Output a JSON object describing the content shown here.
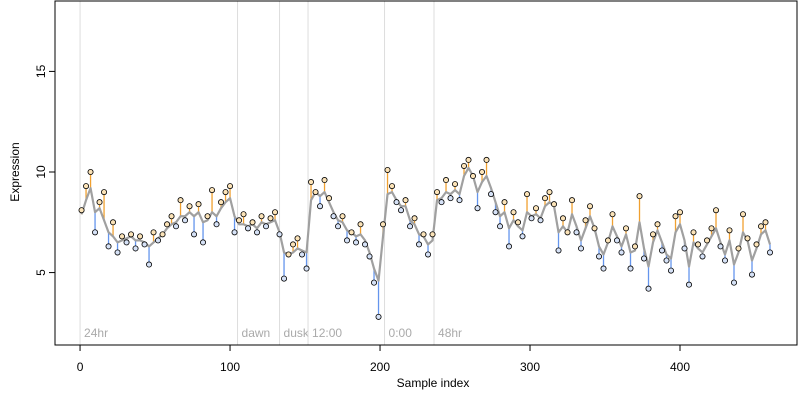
{
  "chart_data": {
    "type": "scatter",
    "xlabel": "Sample index",
    "ylabel": "Expression",
    "xlim": [
      -16.7,
      478
    ],
    "ylim": [
      1.4,
      18.5
    ],
    "xticks": [
      0,
      100,
      200,
      300,
      400
    ],
    "yticks": [
      5,
      10,
      15
    ],
    "above_color": "#f0a030",
    "below_color": "#6495ed",
    "annotations": [
      {
        "x": 0,
        "label": "24hr"
      },
      {
        "x": 105,
        "label": "dawn"
      },
      {
        "x": 133,
        "label": "dusk"
      },
      {
        "x": 152,
        "label": "12:00"
      },
      {
        "x": 203,
        "label": "0:00"
      },
      {
        "x": 236,
        "label": "48hr"
      }
    ],
    "x": [
      1,
      4,
      7,
      10,
      13,
      16,
      19,
      22,
      25,
      28,
      31,
      34,
      37,
      40,
      43,
      46,
      49,
      52,
      55,
      58,
      61,
      64,
      67,
      70,
      73,
      76,
      79,
      82,
      85,
      88,
      91,
      94,
      97,
      100,
      103,
      106,
      109,
      112,
      115,
      118,
      121,
      124,
      127,
      130,
      133,
      136,
      139,
      142,
      145,
      148,
      151,
      154,
      157,
      160,
      163,
      166,
      169,
      172,
      175,
      178,
      181,
      184,
      187,
      190,
      193,
      196,
      199,
      202,
      205,
      208,
      211,
      214,
      217,
      220,
      223,
      226,
      229,
      232,
      235,
      238,
      241,
      244,
      247,
      250,
      253,
      256,
      259,
      262,
      265,
      268,
      271,
      274,
      277,
      280,
      283,
      286,
      289,
      292,
      295,
      298,
      301,
      304,
      307,
      310,
      313,
      316,
      319,
      322,
      325,
      328,
      331,
      334,
      337,
      340,
      343,
      346,
      349,
      352,
      355,
      358,
      361,
      364,
      367,
      370,
      373,
      376,
      379,
      382,
      385,
      388,
      391,
      394,
      397,
      400,
      403,
      406,
      409,
      412,
      415,
      418,
      421,
      424,
      427,
      430,
      433,
      436,
      439,
      442,
      445,
      448,
      451,
      454,
      457,
      460
    ],
    "series": [
      {
        "color": "#000000",
        "values": [
          8.1,
          9.3,
          10.0,
          7.0,
          8.5,
          9.0,
          6.3,
          7.5,
          6.0,
          6.8,
          6.5,
          6.9,
          6.2,
          6.8,
          6.4,
          5.4,
          7.0,
          6.6,
          6.9,
          7.4,
          7.8,
          7.3,
          8.6,
          7.6,
          8.3,
          6.9,
          8.4,
          6.5,
          7.8,
          9.1,
          7.4,
          8.5,
          9.0,
          9.3,
          7.0,
          7.6,
          7.9,
          7.2,
          7.5,
          7.0,
          7.8,
          7.3,
          7.7,
          8.0,
          6.9,
          4.7,
          5.9,
          6.4,
          6.7,
          5.9,
          5.2,
          9.5,
          9.0,
          8.3,
          9.6,
          8.7,
          7.8,
          7.3,
          7.8,
          6.6,
          7.0,
          6.5,
          7.4,
          6.4,
          5.8,
          4.5,
          2.8,
          7.4,
          10.1,
          9.3,
          8.5,
          8.1,
          8.6,
          7.3,
          7.7,
          6.4,
          6.9,
          5.9,
          6.9,
          9.0,
          8.5,
          9.6,
          8.7,
          9.4,
          8.6,
          10.3,
          10.6,
          9.8,
          8.2,
          10.0,
          10.6,
          8.9,
          8.0,
          7.3,
          8.5,
          6.3,
          8.0,
          7.5,
          6.8,
          8.9,
          7.7,
          8.2,
          7.6,
          8.7,
          9.0,
          8.4,
          6.1,
          7.7,
          7.0,
          8.6,
          7.0,
          6.2,
          7.6,
          8.3,
          7.2,
          5.8,
          5.2,
          6.6,
          7.9,
          6.6,
          6.0,
          7.2,
          5.2,
          6.3,
          8.8,
          5.7,
          4.2,
          6.9,
          7.4,
          6.1,
          5.6,
          5.1,
          7.8,
          8.0,
          6.2,
          4.4,
          7.0,
          6.4,
          5.8,
          6.6,
          7.2,
          8.1,
          6.3,
          5.6,
          7.1,
          4.5,
          6.2,
          7.9,
          6.7,
          4.9,
          6.4,
          7.3,
          7.5,
          6.0
        ]
      },
      {
        "color": "#a0a0a0",
        "values": [
          7.9,
          8.6,
          9.2,
          8.0,
          8.2,
          7.6,
          7.0,
          6.8,
          6.5,
          6.6,
          6.7,
          6.8,
          6.6,
          6.6,
          6.5,
          6.3,
          6.5,
          6.7,
          6.9,
          7.2,
          7.4,
          7.5,
          7.8,
          7.8,
          8.0,
          7.8,
          8.0,
          7.5,
          7.6,
          8.0,
          7.8,
          8.2,
          8.5,
          8.7,
          7.8,
          7.4,
          7.4,
          7.3,
          7.4,
          7.2,
          7.5,
          7.4,
          7.5,
          7.6,
          7.0,
          6.0,
          5.9,
          6.0,
          6.2,
          6.1,
          6.0,
          8.6,
          9.0,
          8.8,
          9.0,
          8.5,
          8.0,
          7.6,
          7.5,
          7.1,
          7.0,
          6.8,
          6.9,
          6.6,
          6.0,
          5.2,
          4.6,
          6.8,
          8.9,
          9.0,
          8.6,
          8.3,
          8.3,
          7.6,
          7.4,
          6.9,
          6.8,
          6.4,
          6.6,
          8.6,
          8.7,
          9.0,
          8.9,
          9.1,
          8.9,
          9.8,
          10.2,
          9.8,
          9.0,
          9.5,
          9.8,
          9.2,
          8.5,
          7.8,
          8.0,
          7.2,
          7.6,
          7.3,
          7.1,
          8.0,
          7.8,
          7.9,
          7.7,
          8.3,
          8.5,
          8.3,
          7.0,
          7.3,
          7.0,
          7.9,
          7.3,
          6.6,
          7.2,
          7.8,
          7.2,
          6.3,
          5.9,
          6.5,
          7.3,
          6.8,
          6.3,
          6.9,
          6.0,
          6.1,
          7.5,
          6.2,
          5.3,
          6.5,
          7.1,
          6.5,
          5.9,
          5.7,
          7.0,
          7.4,
          6.6,
          5.3,
          6.5,
          6.2,
          6.0,
          6.4,
          6.8,
          7.2,
          6.5,
          5.9,
          6.6,
          5.4,
          6.0,
          7.0,
          6.6,
          5.6,
          6.2,
          6.9,
          7.1,
          6.4
        ]
      }
    ]
  }
}
